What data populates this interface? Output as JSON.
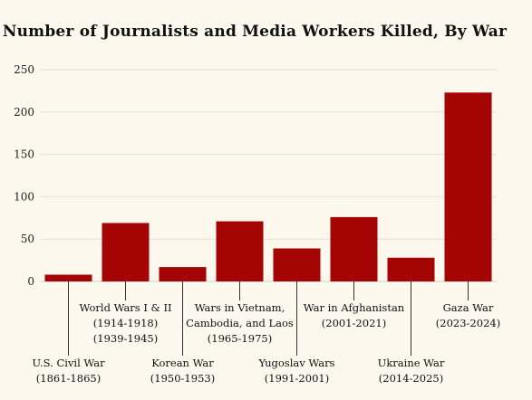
{
  "chart_data": {
    "type": "bar",
    "title": "Number of Journalists and Media Workers Killed, By War",
    "xlabel": "",
    "ylabel": "",
    "ylim": [
      0,
      250
    ],
    "yticks": [
      0,
      50,
      100,
      150,
      200,
      250
    ],
    "grid": true,
    "categories": [
      [
        "U.S. Civil War",
        "(1861-1865)"
      ],
      [
        "World Wars I & II",
        "(1914-1918)",
        "(1939-1945)"
      ],
      [
        "Korean War",
        "(1950-1953)"
      ],
      [
        "Wars in Vietnam,",
        "Cambodia, and Laos",
        "(1965-1975)"
      ],
      [
        "Yugoslav Wars",
        "(1991-2001)"
      ],
      [
        "War in Afghanistan",
        "(2001-2021)"
      ],
      [
        "Ukraine War",
        "(2014-2025)"
      ],
      [
        "Gaza War",
        "(2023-2024)"
      ]
    ],
    "values": [
      8,
      69,
      17,
      71,
      39,
      76,
      28,
      223
    ],
    "bar_color": "#a50404"
  }
}
